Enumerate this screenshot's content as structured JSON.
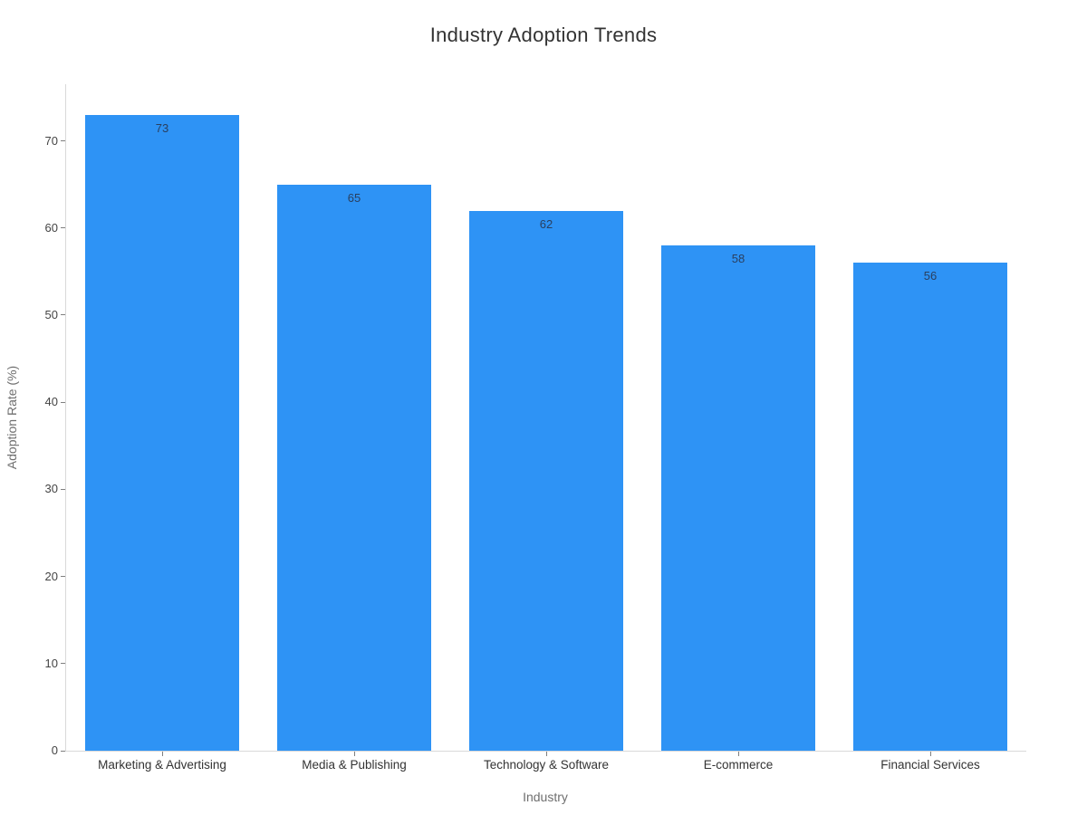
{
  "chart_data": {
    "type": "bar",
    "title": "Industry Adoption Trends",
    "xlabel": "Industry",
    "ylabel": "Adoption Rate (%)",
    "categories": [
      "Marketing & Advertising",
      "Media & Publishing",
      "Technology & Software",
      "E-commerce",
      "Financial Services"
    ],
    "values": [
      73,
      65,
      62,
      58,
      56
    ],
    "value_labels": [
      "73",
      "65",
      "62",
      "58",
      "56"
    ],
    "yticks": [
      0,
      10,
      20,
      30,
      40,
      50,
      60,
      70
    ],
    "ylim": [
      0,
      76.5
    ],
    "grid": false,
    "legend_position": "none",
    "bar_color": "#2e93f5",
    "value_label_color": "#2a3f5f",
    "axis_line_color": "#d9d9d9"
  }
}
